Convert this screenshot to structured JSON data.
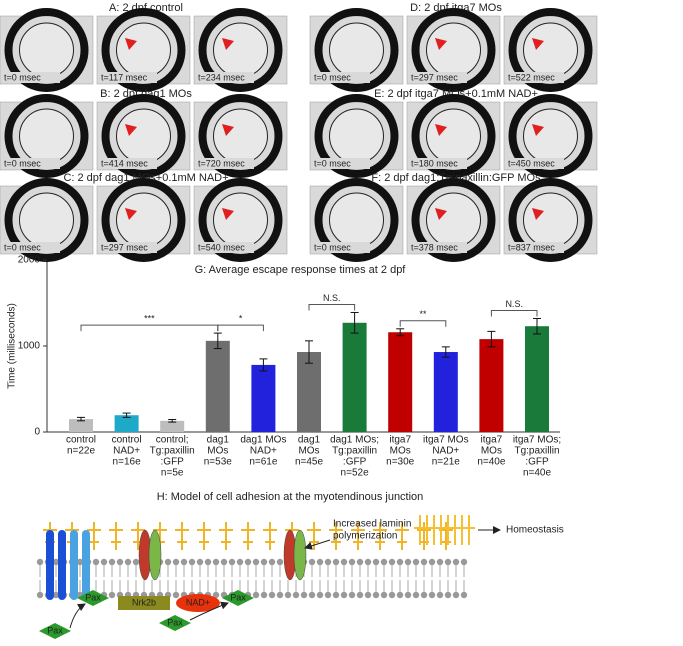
{
  "panels": [
    {
      "title": "A: 2 dpf control",
      "times": [
        "t=0 msec",
        "t=117 msec",
        "t=234 msec"
      ]
    },
    {
      "title": "B: 2 dpf dag1 MOs",
      "times": [
        "t=0 msec",
        "t=414 msec",
        "t=720 msec"
      ]
    },
    {
      "title": "C: 2 dpf dag1 MOs+0.1mM NAD+",
      "times": [
        "t=0 msec",
        "t=297 msec",
        "t=540 msec"
      ]
    },
    {
      "title": "D: 2 dpf itga7 MOs",
      "times": [
        "t=0 msec",
        "t=297 msec",
        "t=522 msec"
      ]
    },
    {
      "title": "E: 2 dpf itga7 MOs+0.1mM NAD+",
      "times": [
        "t=0 msec",
        "t=180 msec",
        "t=450 msec"
      ]
    },
    {
      "title": "F: 2 dpf dag1;Tg:paxillin:GFP MOs",
      "times": [
        "t=0 msec",
        "t=378 msec",
        "t=837 msec"
      ]
    }
  ],
  "chart_data": {
    "type": "bar",
    "title": "G: Average escape response times at 2 dpf",
    "ylabel": "Time (milliseconds)",
    "categories": [
      [
        "control"
      ],
      [
        "control",
        "NAD+"
      ],
      [
        "control;",
        "Tg:paxillin",
        ":GFP"
      ],
      [
        "dag1",
        "MOs"
      ],
      [
        "dag1 MOs",
        "NAD+"
      ],
      [
        "dag1",
        "MOs"
      ],
      [
        "dag1 MOs;",
        "Tg:paxillin",
        ":GFP"
      ],
      [
        "itga7",
        "MOs"
      ],
      [
        "itga7 MOs",
        "NAD+"
      ],
      [
        "itga7",
        "MOs"
      ],
      [
        "itga7 MOs;",
        "Tg:paxillin",
        ":GFP"
      ]
    ],
    "n": [
      "n=22e",
      "n=16e",
      "n=5e",
      "n=53e",
      "n=61e",
      "n=45e",
      "n=52e",
      "n=30e",
      "n=21e",
      "n=40e",
      "n=40e"
    ],
    "values": [
      150,
      195,
      130,
      1060,
      780,
      930,
      1270,
      1160,
      930,
      1080,
      1230
    ],
    "errors": [
      20,
      25,
      15,
      90,
      70,
      130,
      120,
      40,
      60,
      90,
      90
    ],
    "colors": [
      "#bdbdbd",
      "#1fa9c9",
      "#bdbdbd",
      "#6e6e6e",
      "#2222dd",
      "#6e6e6e",
      "#1a7a3a",
      "#c00000",
      "#2222dd",
      "#c00000",
      "#1a7a3a"
    ],
    "ylim": [
      0,
      2000
    ],
    "yticks": [
      0,
      1000,
      2000
    ],
    "annotations": [
      "***",
      "*",
      "N.S.",
      "**",
      "N.S."
    ]
  },
  "model": {
    "title": "H: Model of cell adhesion at the myotendinous junction",
    "labels": [
      "Increased laminin",
      "polymerization",
      "Homeostasis",
      "Nrk2b",
      "NAD+",
      "Pax",
      "Pax",
      "Pax",
      "Pax"
    ]
  }
}
